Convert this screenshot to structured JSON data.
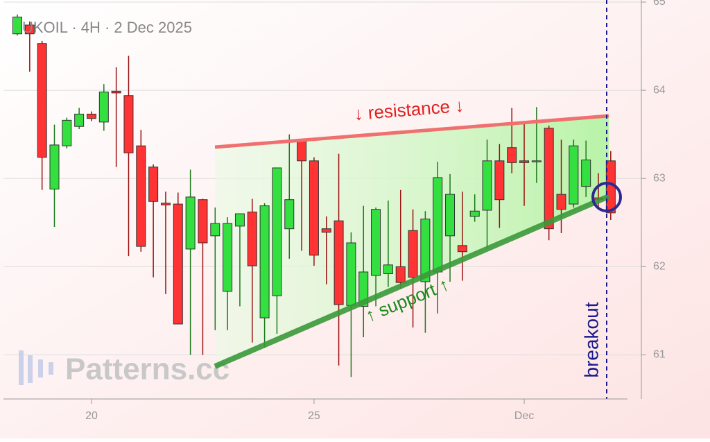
{
  "chart_data": {
    "type": "candlestick",
    "title": "UKOIL · 4H · 2 Dec 2025",
    "watermark": "Patterns.cc",
    "annotations": [
      "↓ resistance ↓",
      "↑ support ↑",
      "breakout"
    ],
    "categories": [
      null,
      null,
      null,
      null,
      null,
      null,
      "20",
      null,
      null,
      null,
      null,
      null,
      null,
      null,
      null,
      null,
      null,
      null,
      null,
      null,
      null,
      null,
      null,
      null,
      "25",
      null,
      null,
      null,
      null,
      null,
      null,
      null,
      null,
      null,
      null,
      null,
      null,
      null,
      null,
      null,
      null,
      "Dec",
      null,
      null,
      null,
      null,
      null,
      null,
      null
    ],
    "open": [
      64.64,
      64.74,
      64.53,
      62.88,
      63.37,
      63.59,
      63.73,
      63.64,
      63.99,
      63.94,
      63.37,
      63.13,
      62.72,
      62.71,
      62.2,
      62.76,
      62.35,
      61.72,
      62.46,
      62.62,
      61.42,
      61.67,
      62.43,
      63.42,
      63.2,
      62.43,
      62.52,
      61.56,
      61.55,
      61.9,
      61.92,
      62.0,
      62.41,
      61.83,
      61.94,
      62.35,
      62.24,
      62.57,
      62.64,
      63.2,
      63.35,
      63.2,
      63.19,
      63.57,
      62.82,
      62.71,
      62.91,
      62.78,
      63.2
    ],
    "high": [
      64.86,
      64.78,
      64.56,
      63.61,
      63.69,
      63.8,
      63.76,
      64.07,
      64.26,
      64.39,
      63.55,
      63.16,
      62.85,
      62.84,
      63.1,
      62.77,
      62.67,
      62.56,
      62.6,
      62.77,
      62.72,
      63.12,
      63.5,
      63.44,
      63.24,
      62.57,
      63.28,
      62.39,
      62.69,
      62.67,
      62.75,
      62.87,
      62.65,
      62.63,
      63.19,
      63.05,
      62.85,
      62.82,
      63.44,
      63.39,
      63.8,
      63.65,
      63.81,
      63.6,
      63.44,
      63.44,
      63.43,
      63.06,
      63.31
    ],
    "low": [
      64.62,
      64.21,
      62.87,
      62.45,
      63.34,
      63.56,
      63.65,
      63.54,
      63.13,
      62.12,
      62.17,
      61.88,
      61.69,
      61.35,
      61.0,
      61.0,
      61.28,
      61.28,
      61.55,
      61.14,
      61.08,
      61.24,
      62.09,
      62.18,
      62.01,
      61.8,
      60.88,
      60.75,
      61.2,
      61.55,
      61.77,
      61.75,
      61.31,
      61.25,
      61.47,
      61.83,
      61.84,
      62.51,
      62.21,
      62.44,
      63.06,
      62.69,
      62.95,
      62.3,
      62.38,
      62.67,
      62.79,
      62.65,
      62.53
    ],
    "close": [
      64.83,
      64.64,
      63.24,
      63.38,
      63.66,
      63.73,
      63.68,
      63.98,
      63.97,
      63.29,
      62.23,
      62.74,
      62.7,
      61.35,
      62.79,
      62.27,
      62.49,
      62.49,
      62.6,
      62.01,
      62.69,
      63.12,
      62.76,
      63.2,
      62.13,
      62.39,
      61.57,
      62.27,
      61.94,
      62.65,
      62.02,
      61.82,
      61.88,
      62.54,
      63.01,
      62.82,
      62.17,
      62.63,
      63.2,
      62.76,
      63.18,
      63.18,
      63.2,
      62.43,
      62.65,
      63.37,
      63.21,
      62.76,
      62.61
    ],
    "up_color": "#33e03f",
    "down_color": "#ff3333",
    "ylim": [
      60.5,
      65
    ],
    "yticks": [
      61,
      62,
      63,
      64,
      65
    ],
    "grid": true
  }
}
